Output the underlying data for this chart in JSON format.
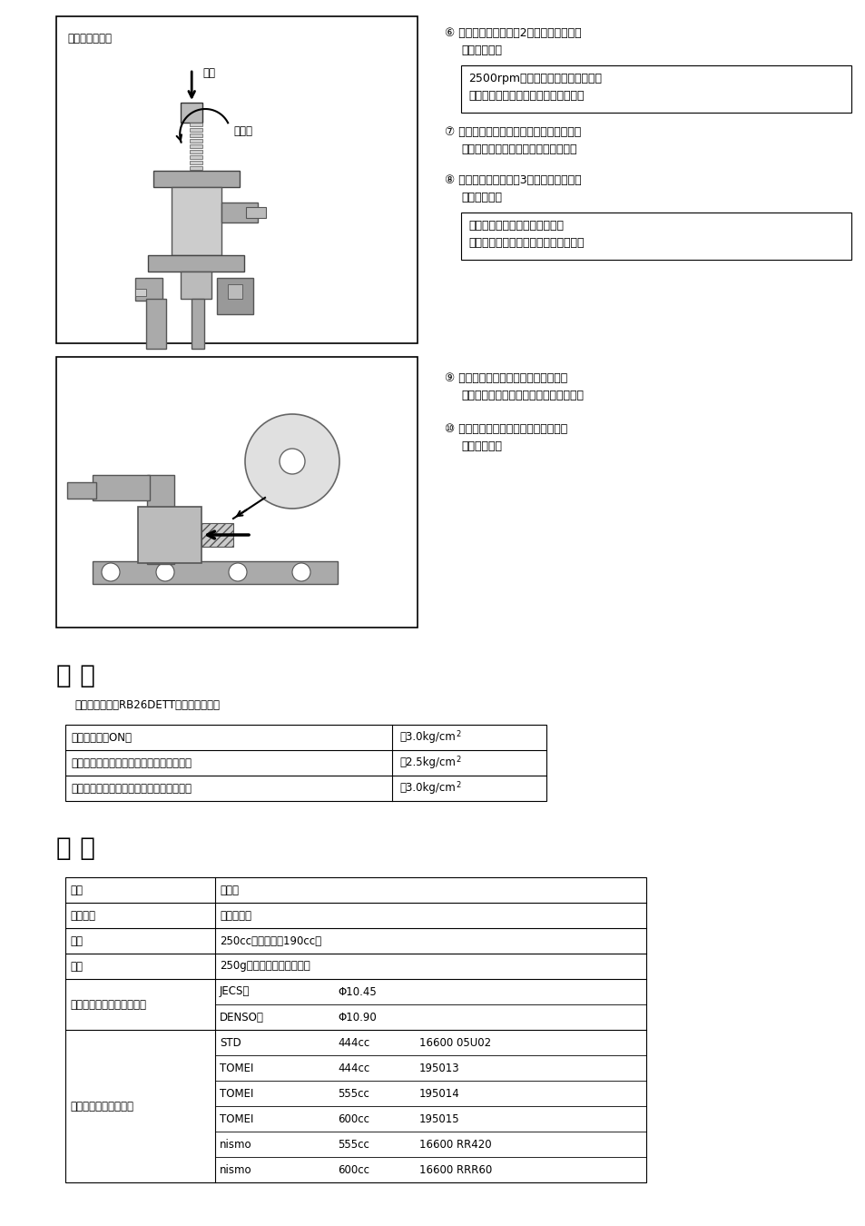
{
  "bg_color": "#ffffff",
  "step5_title": "⑥ ガソリン漏れ点検（2回目）を実施して",
  "step5_sub": "　ください。",
  "step5_box": "2500rpmを３分間保ち、ガソリンの\n漏れが無いことを確認してください。",
  "step6_title": "⑦ 調整ボルトで閑め込んで燃圧を設定し、",
  "step6_sub": "　ロックナットで固定してください。",
  "step7_title": "⑧ ガソリン漏れ点検（3回目）を実施して",
  "step7_sub": "　ください。",
  "step7_box": "設定燃圧（最大燃圧）の時に、\n漏れが無いことを確認してください。",
  "step8_title": "⑨ 燃圧計を取り外し、シールテープを",
  "step8_sub": "　介してプラグを締め付けてください。",
  "step9_title": "⑩ プラグ部のガソリン漏れを点検して",
  "step9_sub": "　ください。",
  "diag1_label_reg": "レギュレーター",
  "diag1_label_adj": "調整",
  "diag1_label_lock": "ロック",
  "ref_heading": "参 考",
  "ref_sub": "標準エンジン（RB26DETT）の燃圧規定値",
  "ref_rows": [
    [
      "キースイッチON時",
      "約3.0kg/cm"
    ],
    [
      "アイドル時（レギュレーターホース接続）",
      "約2.5kg/cm"
    ],
    [
      "アイドル時（レギュレーターホース外す）",
      "約3.0kg/cm"
    ]
  ],
  "spec_heading": "仕 様",
  "spec_rows": [
    [
      "材質",
      "アルミ",
      "",
      ""
    ],
    [
      "表面処理",
      "アルマイト",
      "",
      ""
    ],
    [
      "容量",
      "250cc（ノーマル190cc）",
      "",
      ""
    ],
    [
      "重量",
      "250g（フィッティング含む",
      "",
      ""
    ],
    [
      "インジェクター取付部寸法",
      "JECS用",
      "Φ10.45",
      ""
    ],
    [
      "",
      "DENSO用",
      "Φ10.90",
      ""
    ],
    [
      "適合インジェクター例",
      "STD",
      "444cc",
      "16600 05U02"
    ],
    [
      "",
      "TOMEI",
      "444cc",
      "195013"
    ],
    [
      "",
      "TOMEI",
      "555cc",
      "195014"
    ],
    [
      "",
      "TOMEI",
      "600cc",
      "195015"
    ],
    [
      "",
      "nismo",
      "555cc",
      "16600 RR420"
    ],
    [
      "",
      "nismo",
      "600cc",
      "16600 RRR60"
    ]
  ]
}
